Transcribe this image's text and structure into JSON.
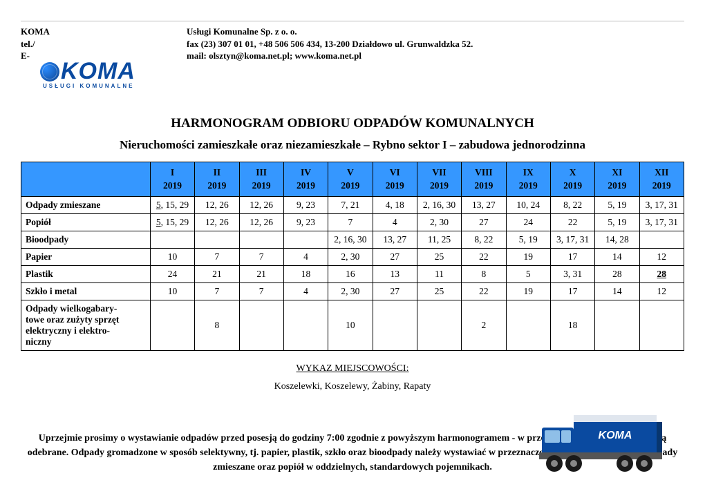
{
  "header": {
    "company_short": "KOMA",
    "tel_label": "tel./",
    "email_label": "E-",
    "company_full": "Usługi Komunalne Sp. z o. o.",
    "address_line": "fax (23) 307 01 01, +48 506 506 434, 13-200 Działdowo ul. Grunwaldzka 52.",
    "email_line": "mail: olsztyn@koma.net.pl; www.koma.net.pl",
    "logo_text": "KOMA",
    "logo_sub": "USŁUGI KOMUNALNE"
  },
  "title": "HARMONOGRAM ODBIORU ODPADÓW KOMUNALNYCH",
  "subtitle": "Nieruchomości zamieszkałe oraz niezamieszkałe – Rybno sektor I – zabudowa jednorodzinna",
  "table": {
    "header_bg": "#3597ff",
    "months_roman": [
      "I",
      "II",
      "III",
      "IV",
      "V",
      "VI",
      "VII",
      "VIII",
      "IX",
      "X",
      "XI",
      "XII"
    ],
    "year": "2019",
    "rows": [
      {
        "label": "Odpady zmieszane",
        "cells": [
          {
            "pre": "5",
            "post": ", 15, 29",
            "underline_pre": true
          },
          {
            "text": "12, 26"
          },
          {
            "text": "12, 26"
          },
          {
            "text": "9, 23"
          },
          {
            "text": "7, 21"
          },
          {
            "text": "4, 18"
          },
          {
            "text": "2, 16, 30"
          },
          {
            "text": "13, 27"
          },
          {
            "text": "10, 24"
          },
          {
            "text": "8, 22"
          },
          {
            "text": "5, 19"
          },
          {
            "text": "3, 17, 31"
          }
        ]
      },
      {
        "label": "Popiół",
        "cells": [
          {
            "pre": "5",
            "post": ", 15, 29",
            "underline_pre": true
          },
          {
            "text": "12, 26"
          },
          {
            "text": "12, 26"
          },
          {
            "text": "9, 23"
          },
          {
            "text": "7"
          },
          {
            "text": "4"
          },
          {
            "text": "2, 30"
          },
          {
            "text": "27"
          },
          {
            "text": "24"
          },
          {
            "text": "22"
          },
          {
            "text": "5, 19"
          },
          {
            "text": "3, 17, 31"
          }
        ]
      },
      {
        "label": "Bioodpady",
        "cells": [
          {
            "text": ""
          },
          {
            "text": ""
          },
          {
            "text": ""
          },
          {
            "text": ""
          },
          {
            "text": "2, 16, 30"
          },
          {
            "text": "13, 27"
          },
          {
            "text": "11, 25"
          },
          {
            "text": "8, 22"
          },
          {
            "text": "5, 19"
          },
          {
            "text": "3, 17, 31"
          },
          {
            "text": "14, 28"
          },
          {
            "text": ""
          }
        ]
      },
      {
        "label": "Papier",
        "cells": [
          {
            "text": "10"
          },
          {
            "text": "7"
          },
          {
            "text": "7"
          },
          {
            "text": "4"
          },
          {
            "text": "2, 30"
          },
          {
            "text": "27"
          },
          {
            "text": "25"
          },
          {
            "text": "22"
          },
          {
            "text": "19"
          },
          {
            "text": "17"
          },
          {
            "text": "14"
          },
          {
            "text": "12"
          }
        ]
      },
      {
        "label": "Plastik",
        "cells": [
          {
            "text": "24"
          },
          {
            "text": "21"
          },
          {
            "text": "21"
          },
          {
            "text": "18"
          },
          {
            "text": "16"
          },
          {
            "text": "13"
          },
          {
            "text": "11"
          },
          {
            "text": "8"
          },
          {
            "text": "5"
          },
          {
            "text": "3, 31"
          },
          {
            "text": "28"
          },
          {
            "text": "28",
            "underline": true,
            "bold": true
          }
        ]
      },
      {
        "label": "Szkło i metal",
        "cells": [
          {
            "text": "10"
          },
          {
            "text": "7"
          },
          {
            "text": "7"
          },
          {
            "text": "4"
          },
          {
            "text": "2, 30"
          },
          {
            "text": "27"
          },
          {
            "text": "25"
          },
          {
            "text": "22"
          },
          {
            "text": "19"
          },
          {
            "text": "17"
          },
          {
            "text": "14"
          },
          {
            "text": "12"
          }
        ]
      },
      {
        "label": "Odpady wielkogabary-\ntowe oraz zużyty sprzęt\nelektryczny i elektro-\nniczny",
        "cells": [
          {
            "text": ""
          },
          {
            "text": "8"
          },
          {
            "text": ""
          },
          {
            "text": ""
          },
          {
            "text": "10"
          },
          {
            "text": ""
          },
          {
            "text": ""
          },
          {
            "text": "2"
          },
          {
            "text": ""
          },
          {
            "text": "18"
          },
          {
            "text": ""
          },
          {
            "text": ""
          }
        ]
      }
    ]
  },
  "locations_heading": "WYKAZ MIEJSCOWOŚCI:",
  "locations_list": "Koszelewki, Koszelewy, Żabiny, Rapaty",
  "notice": "Uprzejmie prosimy o wystawianie odpadów przed posesją do godziny 7:00 zgodnie z powyższym harmonogramem - w przeciwnym wypadku nie zostaną odebrane. Odpady gromadzone w sposób selektywny, tj. papier, plastik, szkło oraz bioodpady należy wystawiać w przeznaczonych do tego workach, a odpady zmieszane oraz popiół w oddzielnych, standardowych pojemnikach.",
  "truck": {
    "body_color": "#0a4aa0",
    "logo": "KOMA"
  }
}
